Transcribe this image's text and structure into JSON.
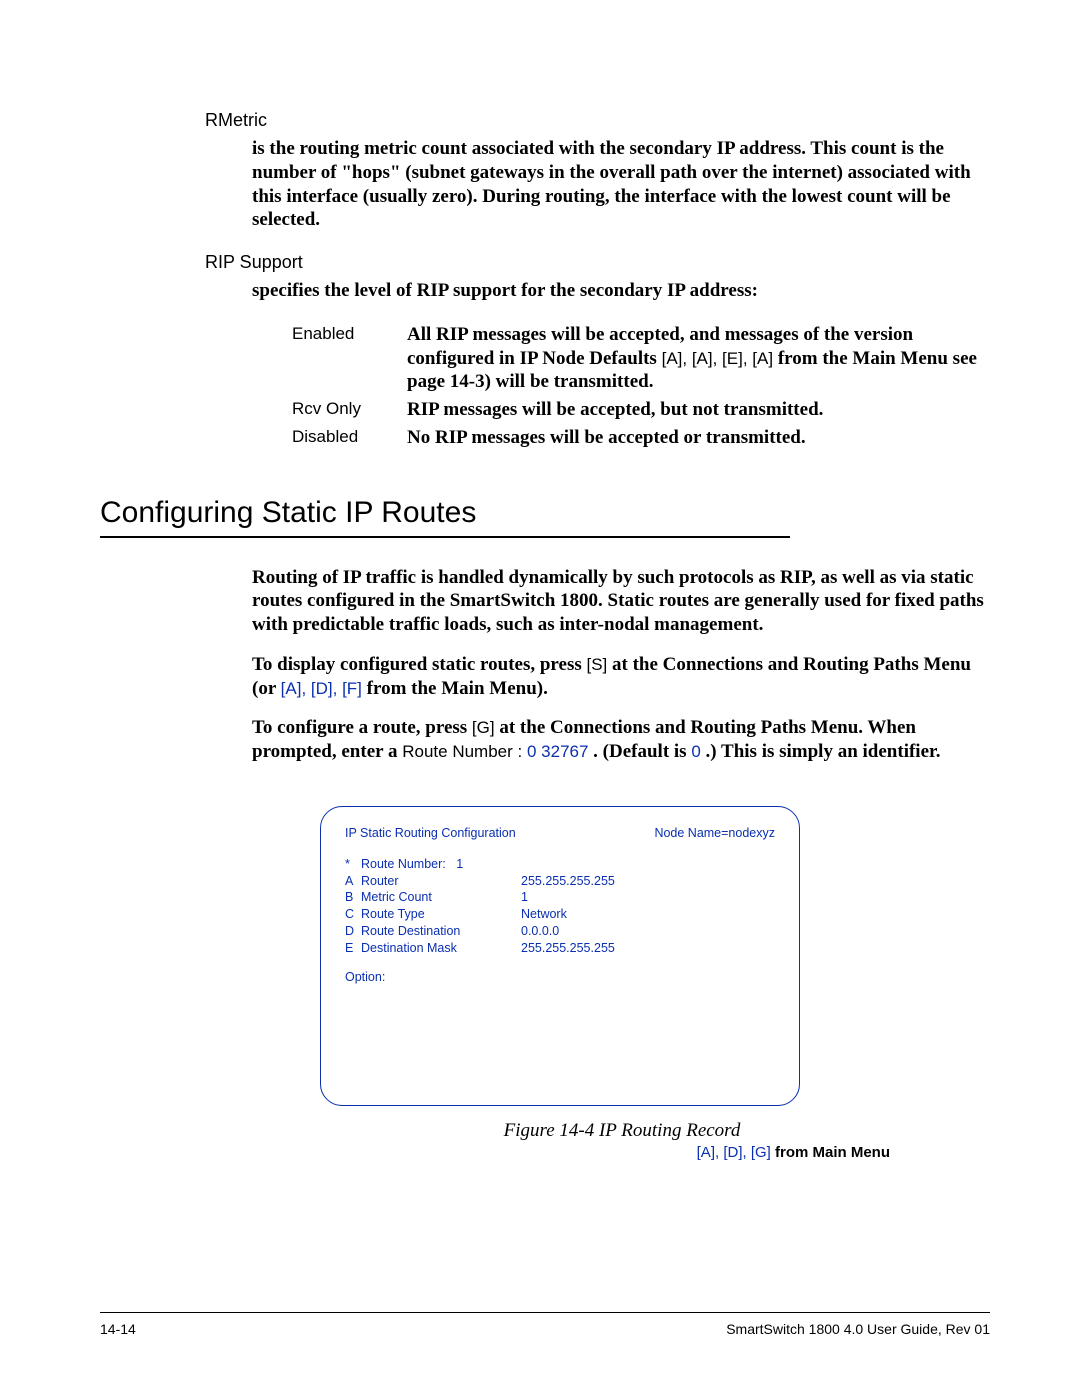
{
  "rmetric": {
    "label": "RMetric",
    "body": "is the routing metric count associated with the secondary IP address. This count is the number of \"hops\" (subnet gateways in the overall path over the internet) associated with this interface (usually zero). During routing, the interface with the lowest count will be selected."
  },
  "ripSupport": {
    "label": "RIP Support",
    "intro": "specifies the level of RIP support for the secondary IP address:",
    "rows": [
      {
        "key": "Enabled",
        "pre": "All RIP messages will be accepted, and messages of the version configured in IP Node Defaults",
        "keys": "[A], [A], [E], [A]",
        "post": "  from the Main Menu see page 14-3) will be transmitted."
      },
      {
        "key": "Rcv Only",
        "pre": "RIP messages will be accepted, but not transmitted.",
        "keys": "",
        "post": ""
      },
      {
        "key": "Disabled",
        "pre": "No RIP messages will be accepted or transmitted.",
        "keys": "",
        "post": ""
      }
    ]
  },
  "section": {
    "title": "Configuring Static IP Routes",
    "p1": "Routing of IP traffic is handled dynamically by such protocols as RIP, as well as via static routes configured in the SmartSwitch 1800. Static routes are generally used for fixed paths with predictable traffic loads, such as inter-nodal management.",
    "p2_pre": "To display configured static routes, press",
    "p2_key1": "[S]",
    "p2_mid": " at the Connections and Routing Paths Menu (or",
    "p2_key2": "[A], [D], [F]",
    "p2_post": "  from the Main Menu).",
    "p3_pre": "To configure a route, press",
    "p3_key1": "[G]",
    "p3_mid": " at the Connections and Routing Paths Menu. When prompted, enter a",
    "p3_mono1": "Route Number :",
    "p3_blue1": " 0 32767 ",
    "p3_mid2": ". (Default is",
    "p3_blue2": " 0",
    "p3_post": ".) This is simply an identifier."
  },
  "terminal": {
    "title": "IP Static Routing Configuration",
    "nodeName": "Node Name=nodexyz",
    "fields": [
      {
        "letter": "*",
        "label": "Route Number:",
        "value": "1"
      },
      {
        "letter": "A",
        "label": "Router",
        "value": "255.255.255.255"
      },
      {
        "letter": "B",
        "label": "Metric Count",
        "value": "1"
      },
      {
        "letter": "C",
        "label": "Route Type",
        "value": "Network"
      },
      {
        "letter": "D",
        "label": "Route Destination",
        "value": "0.0.0.0"
      },
      {
        "letter": "E",
        "label": "Destination Mask",
        "value": "255.255.255.255"
      }
    ],
    "option": "Option:"
  },
  "figure": {
    "caption": "Figure 14-4   IP Routing Record",
    "subKeys": "[A], [D], [G]",
    "subText": "  from Main Menu"
  },
  "footer": {
    "left": "14-14",
    "right": "SmartSwitch 1800 4.0 User Guide, Rev 01"
  }
}
